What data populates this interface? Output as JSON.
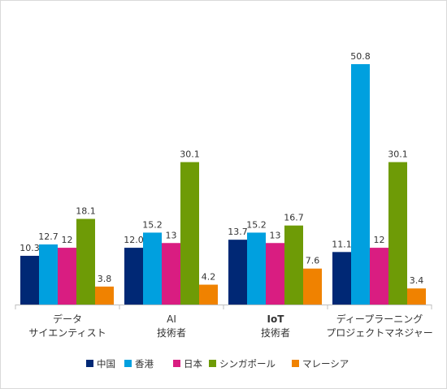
{
  "chart_data": {
    "type": "bar",
    "categories": [
      {
        "lines": [
          "データ",
          "サイエンティスト"
        ],
        "bold": false
      },
      {
        "lines": [
          "AI",
          "技術者"
        ],
        "bold": false
      },
      {
        "lines": [
          "IoT",
          "技術者"
        ],
        "bold": true
      },
      {
        "lines": [
          "ディープラーニング",
          "プロジェクトマネジャー"
        ],
        "bold": false
      }
    ],
    "series": [
      {
        "name": "中国",
        "color": "#002875",
        "values": [
          10.3,
          12.0,
          13.7,
          11.1
        ],
        "labels": [
          "10.3",
          "12.0",
          "13.7",
          "11.1"
        ]
      },
      {
        "name": "香港",
        "color": "#00A0DF",
        "values": [
          12.7,
          15.2,
          15.2,
          50.8
        ],
        "labels": [
          "12.7",
          "15.2",
          "15.2",
          "50.8"
        ]
      },
      {
        "name": "日本",
        "color": "#D91D81",
        "values": [
          12,
          13,
          13,
          12
        ],
        "labels": [
          "12",
          "13",
          "13",
          "12"
        ]
      },
      {
        "name": "シンガポール",
        "color": "#6E9B06",
        "values": [
          18.1,
          30.1,
          16.7,
          30.1
        ],
        "labels": [
          "18.1",
          "30.1",
          "16.7",
          "30.1"
        ]
      },
      {
        "name": "マレーシア",
        "color": "#F08200",
        "values": [
          3.8,
          4.2,
          7.6,
          3.4
        ],
        "labels": [
          "3.8",
          "4.2",
          "7.6",
          "3.4"
        ]
      }
    ],
    "ylim": [
      0,
      50.8
    ],
    "legend_position": "bottom",
    "grid": false
  }
}
